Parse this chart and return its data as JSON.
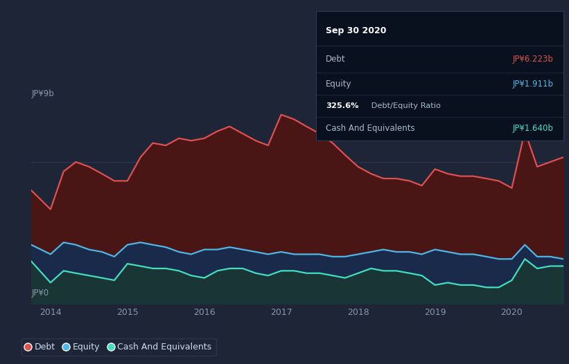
{
  "bg_color": "#1e2537",
  "plot_bg_color": "#1e2537",
  "debt_color": "#e05050",
  "equity_color": "#4db8e8",
  "cash_color": "#40e0c0",
  "debt_fill": "#4a1515",
  "equity_fill": "#1a2a4a",
  "cash_fill": "#1a3535",
  "x_labels": [
    "2014",
    "2015",
    "2016",
    "2017",
    "2018",
    "2019",
    "2020"
  ],
  "years": [
    2013.75,
    2014.0,
    2014.17,
    2014.33,
    2014.5,
    2014.67,
    2014.83,
    2015.0,
    2015.17,
    2015.33,
    2015.5,
    2015.67,
    2015.83,
    2016.0,
    2016.17,
    2016.33,
    2016.5,
    2016.67,
    2016.83,
    2017.0,
    2017.17,
    2017.33,
    2017.5,
    2017.67,
    2017.83,
    2018.0,
    2018.17,
    2018.33,
    2018.5,
    2018.67,
    2018.83,
    2019.0,
    2019.17,
    2019.33,
    2019.5,
    2019.67,
    2019.83,
    2020.0,
    2020.17,
    2020.33,
    2020.5,
    2020.67
  ],
  "debt": [
    4.8,
    4.0,
    5.6,
    6.0,
    5.8,
    5.5,
    5.2,
    5.2,
    6.2,
    6.8,
    6.7,
    7.0,
    6.9,
    7.0,
    7.3,
    7.5,
    7.2,
    6.9,
    6.7,
    8.0,
    7.8,
    7.5,
    7.2,
    6.8,
    6.3,
    5.8,
    5.5,
    5.3,
    5.3,
    5.2,
    5.0,
    5.7,
    5.5,
    5.4,
    5.4,
    5.3,
    5.2,
    4.9,
    7.3,
    5.8,
    6.0,
    6.2
  ],
  "equity": [
    2.5,
    2.1,
    2.6,
    2.5,
    2.3,
    2.2,
    2.0,
    2.5,
    2.6,
    2.5,
    2.4,
    2.2,
    2.1,
    2.3,
    2.3,
    2.4,
    2.3,
    2.2,
    2.1,
    2.2,
    2.1,
    2.1,
    2.1,
    2.0,
    2.0,
    2.1,
    2.2,
    2.3,
    2.2,
    2.2,
    2.1,
    2.3,
    2.2,
    2.1,
    2.1,
    2.0,
    1.9,
    1.9,
    2.5,
    2.0,
    2.0,
    1.9
  ],
  "cash": [
    1.8,
    0.9,
    1.4,
    1.3,
    1.2,
    1.1,
    1.0,
    1.7,
    1.6,
    1.5,
    1.5,
    1.4,
    1.2,
    1.1,
    1.4,
    1.5,
    1.5,
    1.3,
    1.2,
    1.4,
    1.4,
    1.3,
    1.3,
    1.2,
    1.1,
    1.3,
    1.5,
    1.4,
    1.4,
    1.3,
    1.2,
    0.8,
    0.9,
    0.8,
    0.8,
    0.7,
    0.7,
    1.0,
    1.9,
    1.5,
    1.6,
    1.6
  ],
  "ylim": [
    0,
    9
  ],
  "ylabel_top": "JP¥9b",
  "ylabel_bottom": "JP¥0",
  "tooltip": {
    "title": "Sep 30 2020",
    "debt_label": "Debt",
    "debt_value": "JP¥6.223b",
    "equity_label": "Equity",
    "equity_value": "JP¥1.911b",
    "ratio": "325.6% Debt/Equity Ratio",
    "cash_label": "Cash And Equivalents",
    "cash_value": "JP¥1.640b"
  },
  "legend_labels": [
    "Debt",
    "Equity",
    "Cash And Equivalents"
  ]
}
